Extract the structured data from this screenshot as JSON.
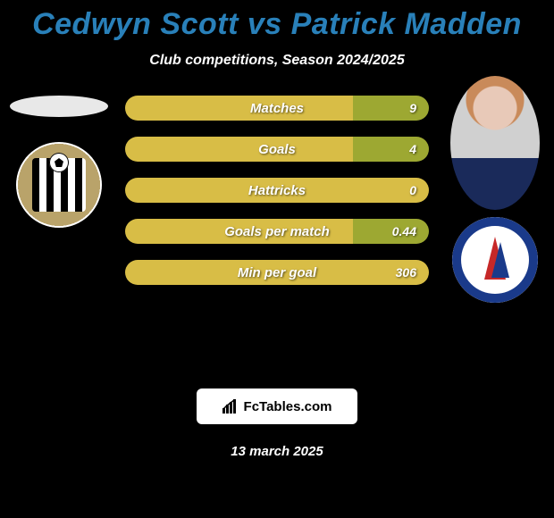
{
  "header": {
    "title": "Cedwyn Scott vs Patrick Madden",
    "title_color": "#2980b9",
    "subtitle": "Club competitions, Season 2024/2025"
  },
  "players": {
    "left": {
      "name": "Cedwyn Scott",
      "club": "Notts County"
    },
    "right": {
      "name": "Patrick Madden",
      "club": "Chesterfield"
    }
  },
  "bars": {
    "track_color": "#d8bd46",
    "fill_color": "#9da832",
    "rows": [
      {
        "label": "Matches",
        "left_value": "",
        "right_value": "9",
        "left_frac": 0,
        "right_frac": 0.5
      },
      {
        "label": "Goals",
        "left_value": "",
        "right_value": "4",
        "left_frac": 0,
        "right_frac": 0.5
      },
      {
        "label": "Hattricks",
        "left_value": "",
        "right_value": "0",
        "left_frac": 0,
        "right_frac": 0
      },
      {
        "label": "Goals per match",
        "left_value": "",
        "right_value": "0.44",
        "left_frac": 0,
        "right_frac": 0.5
      },
      {
        "label": "Min per goal",
        "left_value": "",
        "right_value": "306",
        "left_frac": 0,
        "right_frac": 0
      }
    ]
  },
  "footer": {
    "brand": "FcTables.com",
    "date": "13 march 2025"
  }
}
